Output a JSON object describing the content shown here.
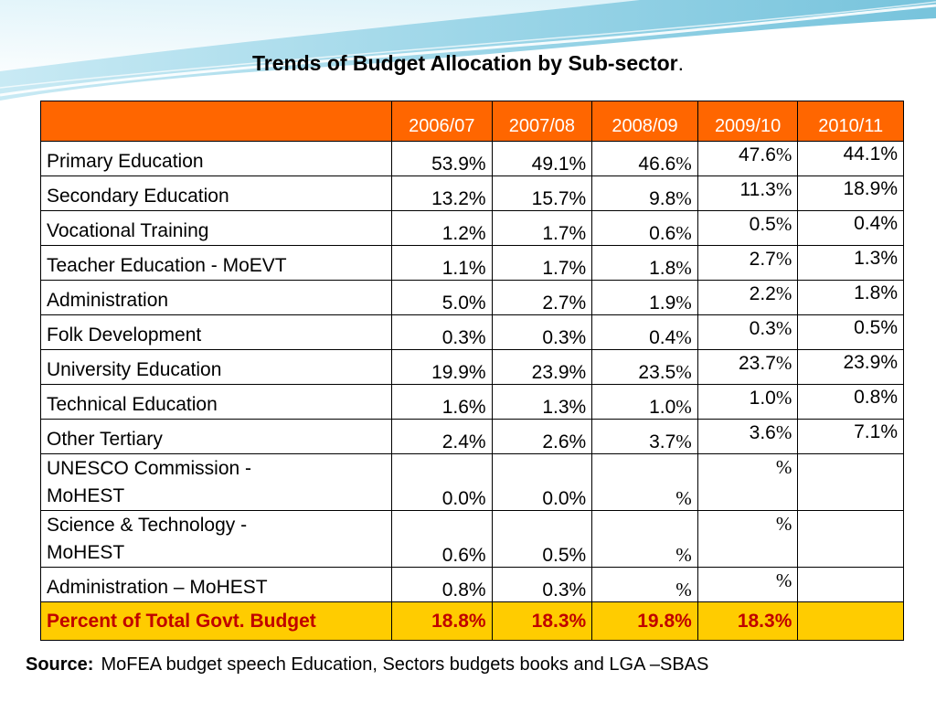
{
  "title": "Trends of Budget Allocation by Sub-sector",
  "title_suffix": ".",
  "table": {
    "header_corner": "",
    "years": [
      "2006/07",
      "2007/08",
      "2008/09",
      "2009/10",
      "2010/11"
    ],
    "rows": [
      {
        "label": "Primary Education",
        "v0": "53.9%",
        "v1": "49.1%",
        "v2": "46.6",
        "v2_pct": "%",
        "v3": "47.6",
        "v3_pct": "%",
        "v4": "44.1%"
      },
      {
        "label": "Secondary Education",
        "v0": "13.2%",
        "v1": "15.7%",
        "v2": "9.8",
        "v2_pct": "%",
        "v3": "11.3",
        "v3_pct": "%",
        "v4": "18.9%"
      },
      {
        "label": "Vocational Training",
        "v0": "1.2%",
        "v1": "1.7%",
        "v2": "0.6",
        "v2_pct": "%",
        "v3": "0.5",
        "v3_pct": "%",
        "v4": "0.4%"
      },
      {
        "label": "Teacher Education - MoEVT",
        "v0": "1.1%",
        "v1": "1.7%",
        "v2": "1.8",
        "v2_pct": "%",
        "v3": "2.7",
        "v3_pct": "%",
        "v4": "1.3%"
      },
      {
        "label": "Administration",
        "v0": "5.0%",
        "v1": "2.7%",
        "v2": "1.9",
        "v2_pct": "%",
        "v3": "2.2",
        "v3_pct": "%",
        "v4": "1.8%"
      },
      {
        "label": "Folk Development",
        "v0": "0.3%",
        "v1": "0.3%",
        "v2": "0.4",
        "v2_pct": "%",
        "v3": "0.3",
        "v3_pct": "%",
        "v4": "0.5%"
      },
      {
        "label": "University Education",
        "v0": "19.9%",
        "v1": "23.9%",
        "v2": "23.5",
        "v2_pct": "%",
        "v3": "23.7",
        "v3_pct": "%",
        "v4": "23.9%"
      },
      {
        "label": "Technical Education",
        "v0": "1.6%",
        "v1": "1.3%",
        "v2": "1.0",
        "v2_pct": "%",
        "v3": "1.0",
        "v3_pct": "%",
        "v4": "0.8%"
      },
      {
        "label": "Other Tertiary",
        "v0": "2.4%",
        "v1": "2.6%",
        "v2": "3.7",
        "v2_pct": "%",
        "v3": "3.6",
        "v3_pct": "%",
        "v4": "7.1%"
      },
      {
        "label_line1": "UNESCO Commission -",
        "label_line2": "MoHEST",
        "v0": "0.0%",
        "v1": "0.0%",
        "v2": "",
        "v2_pct": "%",
        "v3": "",
        "v3_pct": "%",
        "v4": ""
      },
      {
        "label_line1": "Science & Technology -",
        "label_line2": "MoHEST",
        "v0": "0.6%",
        "v1": "0.5%",
        "v2": "",
        "v2_pct": "%",
        "v3": "",
        "v3_pct": "%",
        "v4": ""
      },
      {
        "label": "Administration – MoHEST",
        "v0": "0.8%",
        "v1": "0.3%",
        "v2": "",
        "v2_pct": "%",
        "v3": "",
        "v3_pct": "%",
        "v4": ""
      }
    ],
    "total": {
      "label": "Percent of Total Govt. Budget",
      "v0": "18.8%",
      "v1": "18.3%",
      "v2": "19.8%",
      "v3": "18.3%",
      "v4": ""
    }
  },
  "source": {
    "label": "Source:",
    "text": "MoFEA budget speech Education, Sectors budgets books and LGA –SBAS"
  },
  "colors": {
    "header_bg": "#ff6600",
    "total_bg": "#ffcc00",
    "total_text": "#c00000",
    "wave": "#9fd8ea"
  }
}
